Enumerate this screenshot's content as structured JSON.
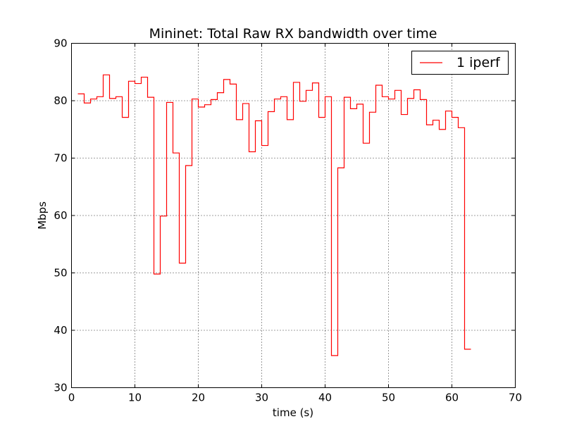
{
  "chart_data": {
    "type": "line",
    "step": true,
    "title": "Mininet: Total Raw RX bandwidth over time",
    "xlabel": "time (s)",
    "ylabel": "Mbps",
    "xlim": [
      0,
      70
    ],
    "ylim": [
      30,
      90
    ],
    "xticks": [
      0,
      10,
      20,
      30,
      40,
      50,
      60,
      70
    ],
    "yticks": [
      30,
      40,
      50,
      60,
      70,
      80,
      90
    ],
    "grid": true,
    "legend_position": "top-right",
    "series": [
      {
        "name": "1 iperf",
        "color": "#ff0000",
        "x": [
          1,
          2,
          3,
          4,
          5,
          6,
          7,
          8,
          9,
          10,
          11,
          12,
          13,
          14,
          15,
          16,
          17,
          18,
          19,
          20,
          21,
          22,
          23,
          24,
          25,
          26,
          27,
          28,
          29,
          30,
          31,
          32,
          33,
          34,
          35,
          36,
          37,
          38,
          39,
          40,
          41,
          42,
          43,
          44,
          45,
          46,
          47,
          48,
          49,
          50,
          51,
          52,
          53,
          54,
          55,
          56,
          57,
          58,
          59,
          60,
          61,
          62
        ],
        "y": [
          81.2,
          79.6,
          80.3,
          80.7,
          84.5,
          80.4,
          80.7,
          77.1,
          83.4,
          83.0,
          84.1,
          80.6,
          49.8,
          59.9,
          79.7,
          70.9,
          51.7,
          68.7,
          80.3,
          78.9,
          79.3,
          80.2,
          81.4,
          83.7,
          82.9,
          76.7,
          79.5,
          71.1,
          76.5,
          72.2,
          78.1,
          80.3,
          80.7,
          76.7,
          83.2,
          79.9,
          81.8,
          83.1,
          77.1,
          80.7,
          35.6,
          68.3,
          80.6,
          78.6,
          79.4,
          72.6,
          78.0,
          82.7,
          80.7,
          80.3,
          81.8,
          77.6,
          80.4,
          81.9,
          80.2,
          75.8,
          76.6,
          75.0,
          78.2,
          77.1,
          75.3,
          36.7
        ]
      }
    ]
  }
}
